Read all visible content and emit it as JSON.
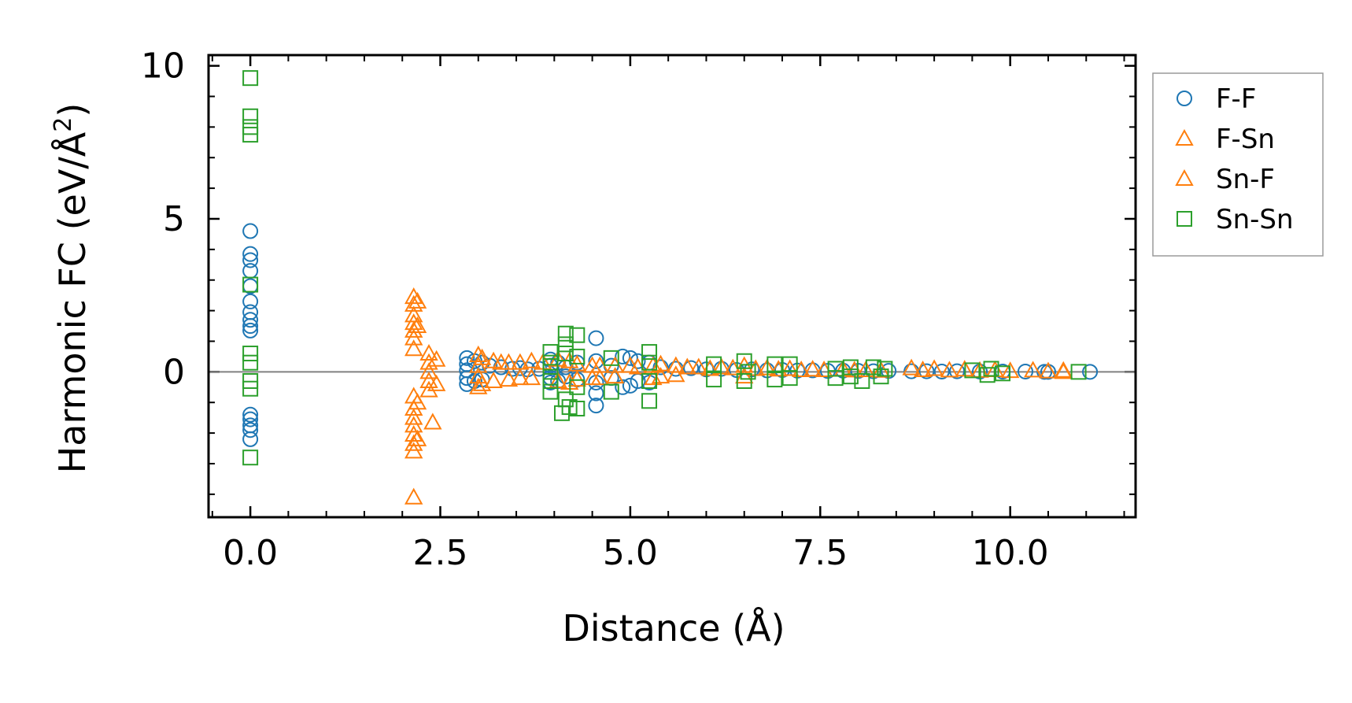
{
  "chart_data": {
    "type": "scatter",
    "title": "",
    "xlabel": "Distance (Å)",
    "ylabel_main": "Harmonic FC (eV/Å",
    "ylabel_sup": "2",
    "ylabel_close": ")",
    "xlim": [
      -0.55,
      11.65
    ],
    "ylim": [
      -4.75,
      10.35
    ],
    "xticks": [
      0.0,
      2.5,
      5.0,
      7.5,
      10.0
    ],
    "xtick_labels": [
      "0.0",
      "2.5",
      "5.0",
      "7.5",
      "10.0"
    ],
    "yticks": [
      0,
      5,
      10
    ],
    "ytick_labels": [
      "0",
      "5",
      "10"
    ],
    "x_minor_step": 0.5,
    "y_minor_step": 1,
    "hline_y": 0,
    "legend_position": "outside-right-top",
    "series": [
      {
        "name": "F-F",
        "marker": "circle",
        "color": "#1f77b4",
        "points": [
          [
            0.0,
            4.6
          ],
          [
            0.0,
            3.85
          ],
          [
            0.0,
            3.65
          ],
          [
            0.0,
            3.3
          ],
          [
            0.0,
            2.8
          ],
          [
            0.0,
            2.3
          ],
          [
            0.0,
            1.95
          ],
          [
            0.0,
            1.7
          ],
          [
            0.0,
            1.5
          ],
          [
            0.0,
            1.35
          ],
          [
            0.0,
            -1.4
          ],
          [
            0.0,
            -1.55
          ],
          [
            0.0,
            -1.75
          ],
          [
            0.0,
            -1.9
          ],
          [
            0.0,
            -2.2
          ],
          [
            2.85,
            0.45
          ],
          [
            2.85,
            0.25
          ],
          [
            2.85,
            0.05
          ],
          [
            2.85,
            -0.2
          ],
          [
            2.85,
            -0.4
          ],
          [
            2.95,
            0.35
          ],
          [
            2.95,
            -0.3
          ],
          [
            3.05,
            0.3
          ],
          [
            3.05,
            -0.25
          ],
          [
            3.15,
            0.2
          ],
          [
            3.3,
            0.15
          ],
          [
            3.45,
            0.1
          ],
          [
            3.55,
            0.12
          ],
          [
            3.65,
            0.08
          ],
          [
            3.8,
            0.1
          ],
          [
            3.95,
            0.4
          ],
          [
            3.95,
            0.2
          ],
          [
            3.95,
            -0.2
          ],
          [
            3.95,
            -0.35
          ],
          [
            4.05,
            0.3
          ],
          [
            4.05,
            -0.3
          ],
          [
            4.15,
            0.15
          ],
          [
            4.15,
            -0.15
          ],
          [
            4.3,
            0.3
          ],
          [
            4.3,
            -0.25
          ],
          [
            4.55,
            1.1
          ],
          [
            4.55,
            0.35
          ],
          [
            4.55,
            -0.35
          ],
          [
            4.55,
            -0.7
          ],
          [
            4.55,
            -1.1
          ],
          [
            4.75,
            0.2
          ],
          [
            4.75,
            -0.2
          ],
          [
            4.9,
            0.5
          ],
          [
            4.9,
            -0.5
          ],
          [
            5.0,
            0.45
          ],
          [
            5.0,
            -0.45
          ],
          [
            5.1,
            0.35
          ],
          [
            5.1,
            -0.3
          ],
          [
            5.25,
            0.3
          ],
          [
            5.25,
            -0.35
          ],
          [
            5.4,
            0.15
          ],
          [
            5.6,
            0.1
          ],
          [
            5.8,
            0.12
          ],
          [
            6.0,
            0.08
          ],
          [
            6.2,
            0.1
          ],
          [
            6.4,
            0.06
          ],
          [
            6.6,
            0.08
          ],
          [
            6.8,
            0.05
          ],
          [
            7.0,
            0.06
          ],
          [
            7.2,
            0.04
          ],
          [
            7.4,
            0.05
          ],
          [
            7.6,
            0.03
          ],
          [
            7.8,
            0.04
          ],
          [
            8.0,
            0.03
          ],
          [
            8.2,
            0.02
          ],
          [
            8.4,
            0.03
          ],
          [
            8.7,
            0.02
          ],
          [
            8.9,
            0.02
          ],
          [
            9.1,
            0.01
          ],
          [
            9.3,
            0.02
          ],
          [
            9.6,
            0.01
          ],
          [
            9.9,
            0.01
          ],
          [
            10.2,
            0.01
          ],
          [
            10.45,
            0.0
          ],
          [
            10.5,
            0.0
          ],
          [
            11.05,
            0.0
          ]
        ]
      },
      {
        "name": "F-Sn",
        "marker": "triangle",
        "color": "#ff7f0e",
        "points": [
          [
            2.15,
            2.45
          ],
          [
            2.15,
            2.2
          ],
          [
            2.15,
            1.85
          ],
          [
            2.15,
            1.6
          ],
          [
            2.15,
            1.35
          ],
          [
            2.15,
            1.1
          ],
          [
            2.15,
            0.75
          ],
          [
            2.15,
            -0.8
          ],
          [
            2.15,
            -1.2
          ],
          [
            2.15,
            -1.5
          ],
          [
            2.15,
            -1.75
          ],
          [
            2.15,
            -2.05
          ],
          [
            2.15,
            -2.35
          ],
          [
            2.15,
            -2.6
          ],
          [
            2.15,
            -4.1
          ],
          [
            2.35,
            0.6
          ],
          [
            2.35,
            0.3
          ],
          [
            2.35,
            0.0
          ],
          [
            2.35,
            -0.3
          ],
          [
            2.35,
            -0.6
          ],
          [
            2.4,
            -1.65
          ],
          [
            3.0,
            0.55
          ],
          [
            3.0,
            0.2
          ],
          [
            3.0,
            -0.15
          ],
          [
            3.0,
            -0.5
          ],
          [
            3.2,
            0.35
          ],
          [
            3.2,
            -0.3
          ],
          [
            3.4,
            0.3
          ],
          [
            3.4,
            -0.25
          ],
          [
            3.7,
            0.35
          ],
          [
            3.7,
            -0.2
          ],
          [
            4.05,
            0.4
          ],
          [
            4.05,
            -0.3
          ],
          [
            4.3,
            0.25
          ],
          [
            4.3,
            -0.25
          ],
          [
            4.5,
            0.2
          ],
          [
            4.5,
            -0.2
          ],
          [
            4.8,
            0.2
          ],
          [
            4.8,
            -0.15
          ],
          [
            5.1,
            0.15
          ],
          [
            5.4,
            0.25
          ],
          [
            5.4,
            -0.15
          ],
          [
            5.6,
            0.2
          ],
          [
            5.6,
            -0.1
          ],
          [
            5.9,
            0.15
          ],
          [
            6.2,
            0.15
          ],
          [
            6.5,
            0.2
          ],
          [
            6.5,
            -0.15
          ],
          [
            6.8,
            0.12
          ],
          [
            7.1,
            0.1
          ],
          [
            7.4,
            0.08
          ],
          [
            7.8,
            0.08
          ],
          [
            8.1,
            0.06
          ],
          [
            8.7,
            0.12
          ],
          [
            9.0,
            0.1
          ],
          [
            9.4,
            0.08
          ],
          [
            9.8,
            0.06
          ],
          [
            10.3,
            0.05
          ],
          [
            10.7,
            0.04
          ]
        ]
      },
      {
        "name": "Sn-F",
        "marker": "triangle",
        "color": "#ff7f0e",
        "points": [
          [
            2.2,
            2.3
          ],
          [
            2.2,
            1.5
          ],
          [
            2.2,
            -1.0
          ],
          [
            2.2,
            -2.2
          ],
          [
            2.45,
            0.4
          ],
          [
            2.45,
            -0.4
          ],
          [
            3.05,
            0.45
          ],
          [
            3.05,
            -0.4
          ],
          [
            3.3,
            0.3
          ],
          [
            3.55,
            0.3
          ],
          [
            3.55,
            -0.2
          ],
          [
            3.85,
            0.3
          ],
          [
            4.2,
            0.35
          ],
          [
            4.2,
            -0.35
          ],
          [
            4.6,
            0.2
          ],
          [
            4.6,
            -0.2
          ],
          [
            5.0,
            0.2
          ],
          [
            5.3,
            0.2
          ],
          [
            5.3,
            -0.2
          ],
          [
            5.75,
            0.15
          ],
          [
            6.05,
            0.1
          ],
          [
            6.35,
            0.12
          ],
          [
            6.65,
            0.1
          ],
          [
            6.95,
            0.08
          ],
          [
            7.25,
            0.06
          ],
          [
            7.55,
            0.06
          ],
          [
            7.95,
            0.05
          ],
          [
            8.3,
            0.04
          ],
          [
            8.85,
            0.06
          ],
          [
            9.2,
            0.05
          ],
          [
            9.6,
            0.04
          ],
          [
            10.0,
            0.03
          ],
          [
            10.5,
            0.02
          ],
          [
            10.7,
            0.0
          ]
        ]
      },
      {
        "name": "Sn-Sn",
        "marker": "square",
        "color": "#2ca02c",
        "points": [
          [
            0.0,
            9.6
          ],
          [
            0.0,
            8.35
          ],
          [
            0.0,
            8.0
          ],
          [
            0.0,
            7.75
          ],
          [
            0.0,
            2.85
          ],
          [
            0.0,
            0.6
          ],
          [
            0.0,
            0.3
          ],
          [
            0.0,
            -0.3
          ],
          [
            0.0,
            -0.55
          ],
          [
            0.0,
            -2.8
          ],
          [
            3.95,
            0.65
          ],
          [
            3.95,
            0.3
          ],
          [
            3.95,
            0.0
          ],
          [
            3.95,
            -0.3
          ],
          [
            3.95,
            -0.65
          ],
          [
            4.1,
            -1.35
          ],
          [
            4.15,
            1.25
          ],
          [
            4.15,
            0.9
          ],
          [
            4.15,
            0.6
          ],
          [
            4.15,
            -0.9
          ],
          [
            4.2,
            -1.15
          ],
          [
            4.3,
            1.2
          ],
          [
            4.3,
            0.5
          ],
          [
            4.3,
            -0.5
          ],
          [
            4.3,
            -1.2
          ],
          [
            4.75,
            0.45
          ],
          [
            4.75,
            -0.65
          ],
          [
            5.25,
            0.65
          ],
          [
            5.25,
            -0.95
          ],
          [
            5.25,
            0.3
          ],
          [
            5.25,
            -0.3
          ],
          [
            6.1,
            0.25
          ],
          [
            6.1,
            -0.25
          ],
          [
            6.5,
            0.35
          ],
          [
            6.5,
            -0.3
          ],
          [
            6.55,
            0.0
          ],
          [
            6.9,
            0.25
          ],
          [
            6.9,
            -0.25
          ],
          [
            7.1,
            0.25
          ],
          [
            7.1,
            -0.2
          ],
          [
            7.7,
            0.1
          ],
          [
            7.7,
            -0.2
          ],
          [
            7.9,
            0.15
          ],
          [
            7.9,
            -0.15
          ],
          [
            8.05,
            -0.3
          ],
          [
            8.2,
            0.15
          ],
          [
            8.3,
            -0.15
          ],
          [
            8.35,
            0.1
          ],
          [
            9.5,
            0.05
          ],
          [
            9.7,
            -0.1
          ],
          [
            9.75,
            0.1
          ],
          [
            9.9,
            -0.05
          ],
          [
            10.9,
            0.0
          ]
        ]
      }
    ]
  }
}
